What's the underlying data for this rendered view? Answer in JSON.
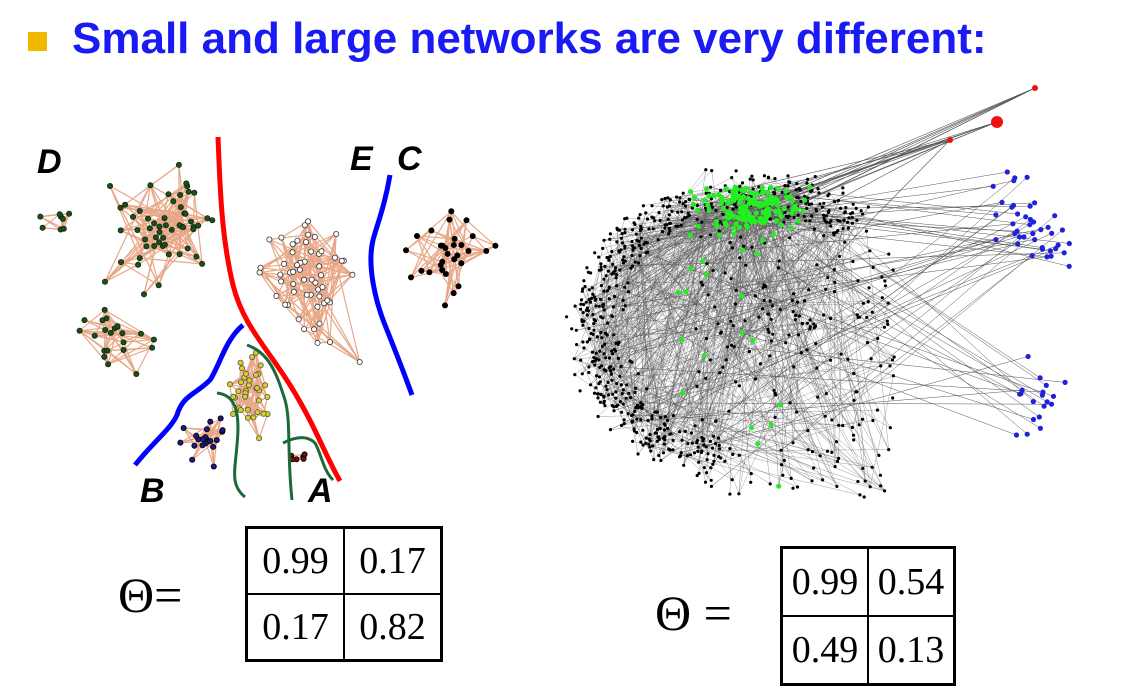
{
  "title": "Small and large networks are very different:",
  "bullet_color": "#f2b800",
  "title_color": "#1a1af5",
  "small_network": {
    "labels": [
      "D",
      "E",
      "C",
      "B",
      "A"
    ],
    "community_colors": {
      "D": "#1f4d1f",
      "E": "#ffffff",
      "C": "#000000",
      "B": "#1a1a80",
      "A": "#6b0f0f",
      "yellow": "#d8d020"
    },
    "edge_color": "#e8a888",
    "cut_colors": {
      "red": "#ff0000",
      "blue": "#0000ff",
      "green": "#1a6a3a"
    }
  },
  "large_network": {
    "node_colors": {
      "core": "#000000",
      "green": "#22ee22",
      "blue": "#2020dd",
      "red": "#ee1111"
    },
    "edge_color": "#555555"
  },
  "left_equation": {
    "symbol": "Θ=",
    "matrix": [
      [
        "0.99",
        "0.17"
      ],
      [
        "0.17",
        "0.82"
      ]
    ]
  },
  "right_equation": {
    "symbol": "Θ =",
    "matrix": [
      [
        "0.99",
        "0.54"
      ],
      [
        "0.49",
        "0.13"
      ]
    ]
  }
}
